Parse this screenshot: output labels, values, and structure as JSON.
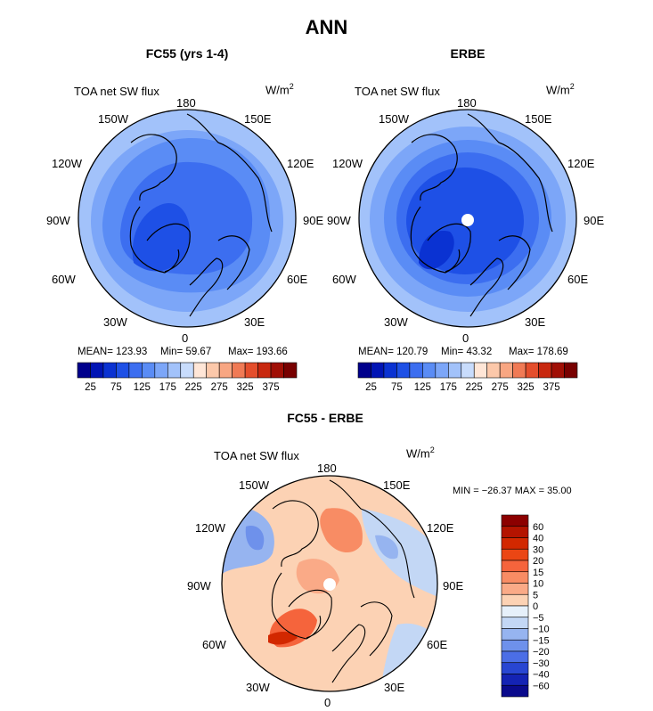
{
  "page_title": "ANN",
  "panels": [
    {
      "title": "FC55 (yrs 1-4)",
      "variable": "TOA net SW flux",
      "units": "W/m",
      "units_exp": "2",
      "stats": {
        "mean": "MEAN= 123.93",
        "min": "Min=  59.67",
        "max": "Max= 193.66"
      }
    },
    {
      "title": "ERBE",
      "variable": "TOA net SW flux",
      "units": "W/m",
      "units_exp": "2",
      "stats": {
        "mean": "MEAN= 120.79",
        "min": "Min=  43.32",
        "max": "Max= 178.69"
      }
    },
    {
      "title": "FC55 - ERBE",
      "variable": "TOA net SW flux",
      "units": "W/m",
      "units_exp": "2",
      "minmax": "MIN = −26.37 MAX =   35.00"
    }
  ],
  "longitude_labels": {
    "top": "180",
    "top_left": "150W",
    "top_right": "150E",
    "upper_left": "120W",
    "upper_right": "120E",
    "left": "90W",
    "right": "90E",
    "lower_left": "60W",
    "lower_right": "60E",
    "bottom_left": "30W",
    "bottom_right": "30E",
    "bottom": "0"
  },
  "chart_data": [
    {
      "type": "heatmap",
      "projection": "north polar stereographic",
      "title": "FC55 (yrs 1-4)",
      "variable": "TOA net SW flux",
      "units": "W/m2",
      "mean": 123.93,
      "min": 59.67,
      "max": 193.66,
      "colorbar_levels": [
        25,
        50,
        75,
        100,
        125,
        150,
        175,
        200,
        225,
        250,
        275,
        300,
        325,
        350,
        375
      ],
      "colorbar_tick_labels": [
        "25",
        "75",
        "125",
        "175",
        "225",
        "275",
        "325",
        "375"
      ],
      "colorbar_colors": [
        "#00008c",
        "#0014b4",
        "#0a32d2",
        "#1e50e6",
        "#3c6ef0",
        "#5a8cf5",
        "#7ca6f8",
        "#a2c2fa",
        "#c8dcfc",
        "#ffe6d7",
        "#fcc8aa",
        "#f8a682",
        "#f07a55",
        "#e44e2c",
        "#c8280f",
        "#a00f05",
        "#780000"
      ]
    },
    {
      "type": "heatmap",
      "projection": "north polar stereographic",
      "title": "ERBE",
      "variable": "TOA net SW flux",
      "units": "W/m2",
      "mean": 120.79,
      "min": 43.32,
      "max": 178.69,
      "colorbar_levels": [
        25,
        50,
        75,
        100,
        125,
        150,
        175,
        200,
        225,
        250,
        275,
        300,
        325,
        350,
        375
      ],
      "colorbar_tick_labels": [
        "25",
        "75",
        "125",
        "175",
        "225",
        "275",
        "325",
        "375"
      ],
      "colorbar_colors": [
        "#00008c",
        "#0014b4",
        "#0a32d2",
        "#1e50e6",
        "#3c6ef0",
        "#5a8cf5",
        "#7ca6f8",
        "#a2c2fa",
        "#c8dcfc",
        "#ffe6d7",
        "#fcc8aa",
        "#f8a682",
        "#f07a55",
        "#e44e2c",
        "#c8280f",
        "#a00f05",
        "#780000"
      ]
    },
    {
      "type": "heatmap",
      "projection": "north polar stereographic",
      "title": "FC55 - ERBE",
      "variable": "TOA net SW flux",
      "units": "W/m2",
      "min": -26.37,
      "max": 35.0,
      "colorbar_levels": [
        60,
        40,
        30,
        20,
        15,
        10,
        5,
        0,
        -5,
        -10,
        -15,
        -20,
        -30,
        -40,
        -60
      ],
      "colorbar_tick_labels": [
        "60",
        "40",
        "30",
        "20",
        "15",
        "10",
        "5",
        "0",
        "−5",
        "−10",
        "−15",
        "−20",
        "−30",
        "−40",
        "−60"
      ],
      "colorbar_colors": [
        "#8c0000",
        "#b41400",
        "#d22800",
        "#eb4614",
        "#f5643c",
        "#f88c64",
        "#faaa87",
        "#fcd2b4",
        "#e6f0fa",
        "#c3d7f5",
        "#96b4f0",
        "#6e91eb",
        "#4b6ee6",
        "#2846d2",
        "#1423b4",
        "#0a0a8c"
      ]
    }
  ]
}
